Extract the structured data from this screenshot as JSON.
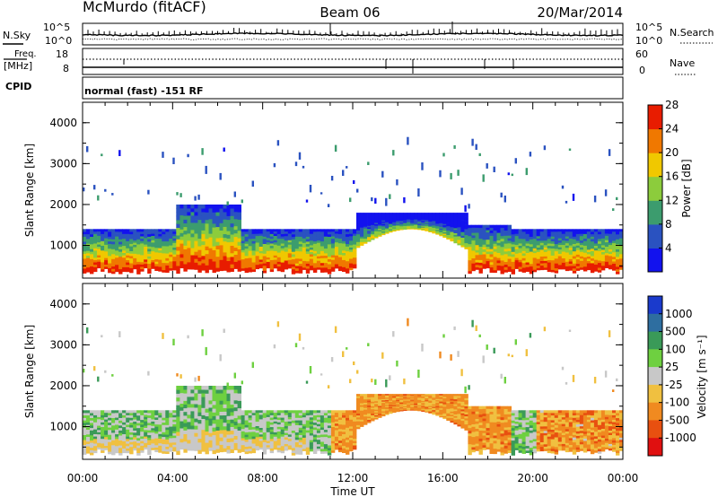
{
  "header": {
    "station": "McMurdo (fitACF)",
    "beam": "Beam 06",
    "date": "20/Mar/2014"
  },
  "top_panel": {
    "left_label": "N.Sky",
    "right_label": "N.Search",
    "left_ticks": [
      "10^5",
      "10^0"
    ],
    "right_ticks": [
      "10^5",
      "10^0"
    ]
  },
  "freq_panel": {
    "left_label_line1": "Freq.",
    "left_label_line2": "[MHz]",
    "left_ticks": [
      "18",
      "8"
    ],
    "right_label": "Nave",
    "right_ticks": [
      "60",
      "0"
    ]
  },
  "cpid_panel": {
    "label": "CPID",
    "text": "normal (fast) -151 RF"
  },
  "chart_data": [
    {
      "type": "heatmap",
      "name": "power",
      "ylabel": "Slant Range [km]",
      "yticks": [
        "1000",
        "2000",
        "3000",
        "4000"
      ],
      "ylim": [
        200,
        4500
      ],
      "xlim": [
        0,
        24
      ],
      "colorbar_label": "Power [dB]",
      "colorbar_ticks": [
        "4",
        "8",
        "12",
        "16",
        "20",
        "24",
        "28"
      ],
      "colorscale": [
        "#1212ee",
        "#2a52c0",
        "#3c9c6e",
        "#8ccc3c",
        "#f0c800",
        "#f07800",
        "#e81c00"
      ],
      "approx_band_km": [
        400,
        1400
      ]
    },
    {
      "type": "heatmap",
      "name": "velocity",
      "ylabel": "Slant Range [km]",
      "yticks": [
        "1000",
        "2000",
        "3000",
        "4000"
      ],
      "ylim": [
        200,
        4500
      ],
      "xlim": [
        0,
        24
      ],
      "colorbar_label": "Velocity [m s⁻¹]",
      "colorbar_ticks": [
        "1000",
        "500",
        "100",
        "25",
        "-25",
        "-100",
        "-500",
        "-1000"
      ],
      "colorscale": [
        "#1a3acc",
        "#2e6ea0",
        "#3a9a58",
        "#6ed040",
        "#c8c8c8",
        "#f0c040",
        "#f08a20",
        "#e85010",
        "#e01010"
      ],
      "approx_band_km": [
        400,
        1400
      ]
    }
  ],
  "xaxis": {
    "ticks": [
      "00:00",
      "04:00",
      "08:00",
      "12:00",
      "16:00",
      "20:00",
      "00:00"
    ],
    "label": "Time UT"
  }
}
